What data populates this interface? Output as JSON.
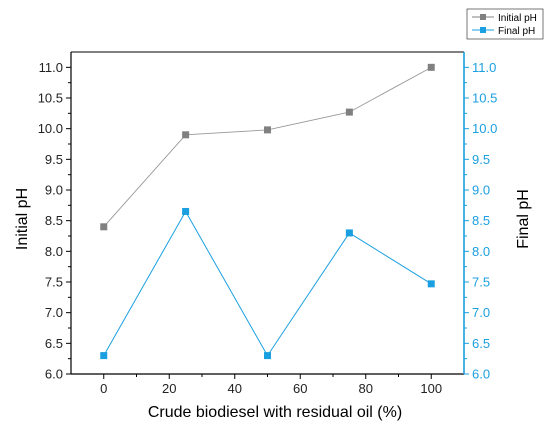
{
  "chart_data": {
    "type": "line",
    "xlabel": "Crude biodiesel with residual oil (%)",
    "ylabel_left": "Initial pH",
    "ylabel_right": "Final pH",
    "x": [
      0,
      25,
      50,
      75,
      100
    ],
    "xlim": [
      -10,
      110
    ],
    "x_ticks": [
      0,
      20,
      40,
      60,
      80,
      100
    ],
    "ylim": [
      6.0,
      11.25
    ],
    "y_ticks": [
      6.0,
      6.5,
      7.0,
      7.5,
      8.0,
      8.5,
      9.0,
      9.5,
      10.0,
      10.5,
      11.0
    ],
    "grid": false,
    "legend_position": "top-right",
    "series": [
      {
        "name": "Initial pH",
        "axis": "left",
        "values": [
          8.4,
          9.9,
          9.98,
          10.27,
          11.0
        ],
        "color": "#808080",
        "marker": "square"
      },
      {
        "name": "Final pH",
        "axis": "right",
        "values": [
          6.3,
          8.65,
          6.3,
          8.3,
          7.47
        ],
        "color": "#1a9fe0",
        "marker": "square"
      }
    ],
    "right_axis_color": "#1a9fe0"
  }
}
